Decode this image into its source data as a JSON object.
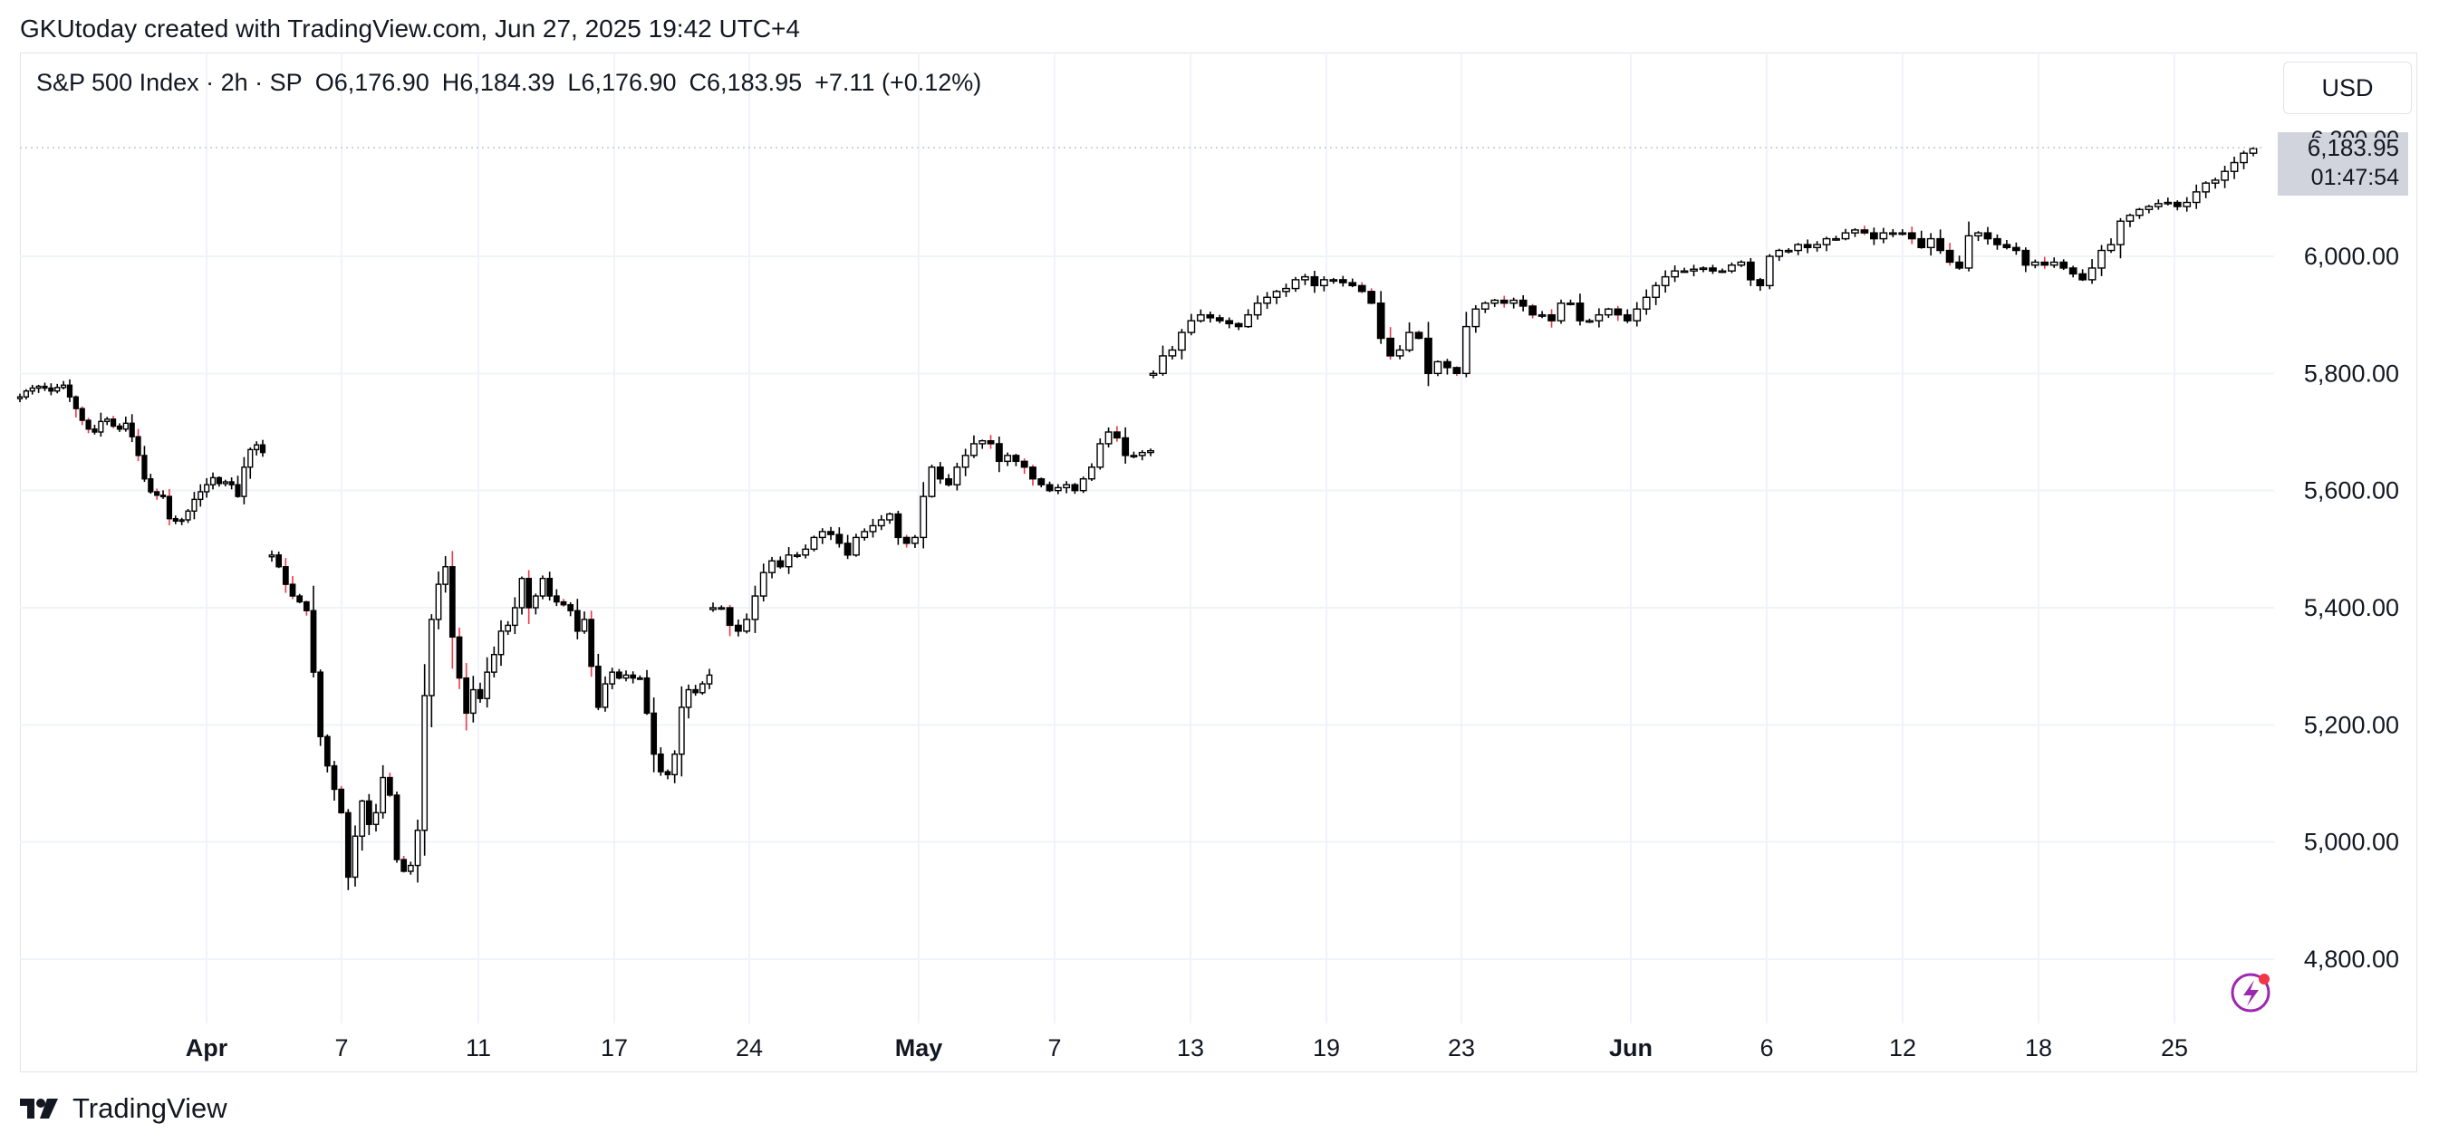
{
  "credit": "GKUtoday created with TradingView.com, Jun 27, 2025 19:42 UTC+4",
  "legend": {
    "symbol": "S&P 500 Index · 2h · SP",
    "open": "O6,176.90",
    "high": "H6,184.39",
    "low": "L6,176.90",
    "close": "C6,183.95",
    "change": "+7.11 (+0.12%)"
  },
  "currency": "USD",
  "last_price": {
    "value": "6,183.95",
    "countdown": "01:47:54",
    "partial_label": "6,200.00"
  },
  "footer": "TradingView",
  "colors": {
    "up": "#ffffff",
    "down": "#000000",
    "wick_down": "#f23645",
    "grid": "#f0f3fa",
    "badge": "#d1d4dc",
    "accent": "#9c27b0"
  },
  "icons": [
    "tradingview-logo-icon",
    "lightning-icon"
  ],
  "chart_data": {
    "type": "candlestick",
    "interval": "2h",
    "ylim": [
      4720,
      6240
    ],
    "y_ticks": [
      "4,800.00",
      "5,000.00",
      "5,200.00",
      "5,400.00",
      "5,600.00",
      "5,800.00",
      "6,000.00"
    ],
    "y_tick_values": [
      4800,
      5000,
      5200,
      5400,
      5600,
      5800,
      6000
    ],
    "x_ticks": [
      "Apr",
      "7",
      "11",
      "17",
      "24",
      "May",
      "7",
      "13",
      "19",
      "23",
      "Jun",
      "6",
      "12",
      "18",
      "25"
    ],
    "x_tick_bold": [
      true,
      false,
      false,
      false,
      false,
      true,
      false,
      false,
      false,
      false,
      true,
      false,
      false,
      false,
      false
    ],
    "grid": true,
    "segments": [
      {
        "start": "Mar 27",
        "points": [
          5760,
          5770,
          5775,
          5778,
          5775,
          5770,
          5776,
          5780,
          5760,
          5740,
          5720,
          5705,
          5700,
          5718,
          5722,
          5710,
          5705,
          5715,
          5692,
          5660,
          5620,
          5598,
          5592,
          5590,
          5552,
          5548,
          5550,
          5565,
          5585,
          5598,
          5610,
          5622,
          5612,
          5615,
          5610,
          5590,
          5640,
          5670,
          5678,
          5665
        ]
      },
      {
        "start": "Apr 4",
        "points": [
          5490,
          5470,
          5440,
          5420,
          5410,
          5395,
          5290,
          5180,
          5130,
          5090,
          5050,
          4940,
          5010,
          5070,
          5030,
          5050,
          5110,
          5080,
          4970,
          4950,
          4960,
          5020,
          5250,
          5380,
          5440,
          5470,
          5350,
          5280,
          5220,
          5260,
          5245,
          5290,
          5320,
          5360,
          5370,
          5400,
          5450,
          5400,
          5420,
          5450,
          5420,
          5410,
          5405,
          5395,
          5360,
          5380,
          5300,
          5230,
          5270,
          5290,
          5280,
          5285,
          5280,
          5280,
          5220,
          5150,
          5120,
          5115,
          5150,
          5230,
          5260,
          5255,
          5270,
          5285
        ]
      },
      {
        "start": "Apr 22",
        "points": [
          5400,
          5400,
          5370,
          5360,
          5380,
          5420,
          5460,
          5480,
          5470,
          5490,
          5490,
          5500,
          5520,
          5530,
          5525,
          5510,
          5490,
          5520,
          5530,
          5540,
          5550,
          5560,
          5520,
          5510,
          5520,
          5590,
          5640,
          5620,
          5610,
          5640,
          5660,
          5680,
          5685,
          5680,
          5650,
          5660,
          5650,
          5640,
          5620,
          5610,
          5600,
          5605,
          5610,
          5600,
          5620,
          5640,
          5680,
          5700,
          5690,
          5660,
          5660,
          5665,
          5668
        ]
      },
      {
        "start": "May 12",
        "points": [
          5800,
          5830,
          5840,
          5870,
          5890,
          5900,
          5895,
          5890,
          5885,
          5880,
          5900,
          5920,
          5930,
          5940,
          5945,
          5960,
          5965,
          5950,
          5960,
          5960,
          5955,
          5950,
          5940,
          5920,
          5860,
          5830,
          5840,
          5870,
          5860,
          5800,
          5820,
          5810,
          5800,
          5880,
          5910,
          5920,
          5925,
          5920,
          5925,
          5915,
          5900,
          5900,
          5890,
          5920,
          5920,
          5890,
          5890,
          5900,
          5910,
          5900,
          5890,
          5910,
          5930,
          5950,
          5965,
          5975,
          5975,
          5978,
          5980,
          5975,
          5975,
          5985,
          5990,
          5960,
          5950,
          6000,
          6010,
          6010,
          6020,
          6015,
          6020,
          6030,
          6030,
          6040,
          6045,
          6040,
          6030,
          6040,
          6040,
          6040,
          6030,
          6015,
          6030,
          6010,
          5990,
          5980,
          6035,
          6040,
          6030,
          6020,
          6015,
          6010,
          5985,
          5990,
          5985,
          5990,
          5980,
          5970,
          5960,
          5980,
          6010,
          6020,
          6060,
          6070,
          6080,
          6085,
          6090,
          6092,
          6085,
          6092,
          6110,
          6125,
          6130,
          6145,
          6160,
          6176,
          6184
        ]
      }
    ],
    "last_value": 6183.95
  }
}
